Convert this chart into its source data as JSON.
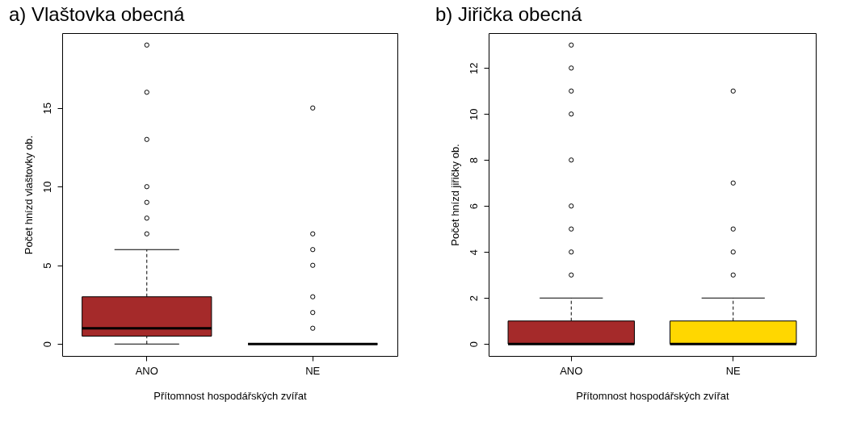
{
  "chart_data": [
    {
      "type": "box",
      "title": "a) Vlaštovka obecná",
      "xlabel": "Přítomnost hospodářských zvířat",
      "ylabel": "Počet hnízd vlaštovky ob.",
      "categories": [
        "ANO",
        "NE"
      ],
      "colors": [
        "#a52a2a",
        "#000000"
      ],
      "ylim": [
        -0.76,
        19.76
      ],
      "yticks": [
        0,
        5,
        10,
        15
      ],
      "boxes": [
        {
          "low": 0,
          "q1": 0.5,
          "median": 1,
          "q3": 3,
          "high": 6,
          "outliers": [
            7,
            8,
            9,
            10,
            13,
            16,
            19
          ]
        },
        {
          "low": 0,
          "q1": 0,
          "median": 0,
          "q3": 0,
          "high": 0,
          "outliers": [
            1,
            2,
            3,
            5,
            6,
            7,
            15
          ]
        }
      ]
    },
    {
      "type": "box",
      "title": "b) Jiřička obecná",
      "xlabel": "Přítomnost hospodářských zvířat",
      "ylabel": "Počet hnízd jiřičky ob.",
      "categories": [
        "ANO",
        "NE"
      ],
      "colors": [
        "#a52a2a",
        "#ffd700"
      ],
      "ylim": [
        -0.52,
        13.52
      ],
      "yticks": [
        0,
        2,
        4,
        6,
        8,
        10,
        12
      ],
      "boxes": [
        {
          "low": 0,
          "q1": 0,
          "median": 0,
          "q3": 1,
          "high": 2,
          "outliers": [
            3,
            4,
            5,
            6,
            8,
            10,
            11,
            12,
            13
          ]
        },
        {
          "low": 0,
          "q1": 0,
          "median": 0,
          "q3": 1,
          "high": 2,
          "outliers": [
            3,
            4,
            5,
            7,
            11
          ]
        }
      ]
    }
  ]
}
